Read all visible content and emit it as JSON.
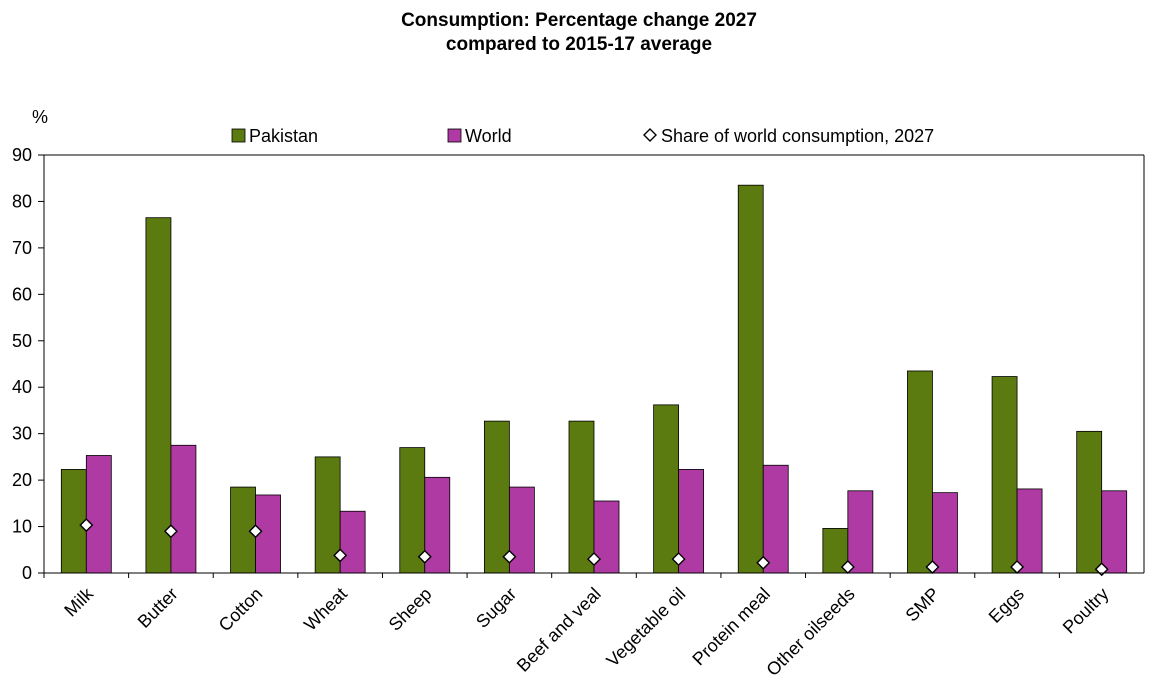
{
  "chart_data": {
    "type": "bar",
    "title_line1": "Consumption: Percentage change 2027",
    "title_line2": "compared to 2015-17 average",
    "ylabel": "%",
    "ylim": [
      0,
      90
    ],
    "yticks": [
      0,
      10,
      20,
      30,
      40,
      50,
      60,
      70,
      80,
      90
    ],
    "categories": [
      "Milk",
      "Butter",
      "Cotton",
      "Wheat",
      "Sheep",
      "Sugar",
      "Beef and veal",
      "Vegetable oil",
      "Protein meal",
      "Other oilseeds",
      "SMP",
      "Eggs",
      "Poultry"
    ],
    "series": [
      {
        "name": "Pakistan",
        "color": "#5b7a10",
        "values": [
          22.3,
          76.5,
          18.5,
          25.0,
          27.0,
          32.7,
          32.7,
          36.2,
          83.5,
          9.6,
          43.5,
          42.3,
          30.5
        ]
      },
      {
        "name": "World",
        "color": "#b03aa3",
        "values": [
          25.3,
          27.5,
          16.8,
          13.3,
          20.6,
          18.5,
          15.5,
          22.3,
          23.2,
          17.7,
          17.3,
          18.1,
          17.7
        ]
      }
    ],
    "markers": {
      "name": "Share of world consumption, 2027",
      "values": [
        10.3,
        9.0,
        9.0,
        3.8,
        3.5,
        3.5,
        3.0,
        3.0,
        2.2,
        1.3,
        1.3,
        1.3,
        0.8
      ]
    },
    "legend_position": "top",
    "grid": false
  }
}
